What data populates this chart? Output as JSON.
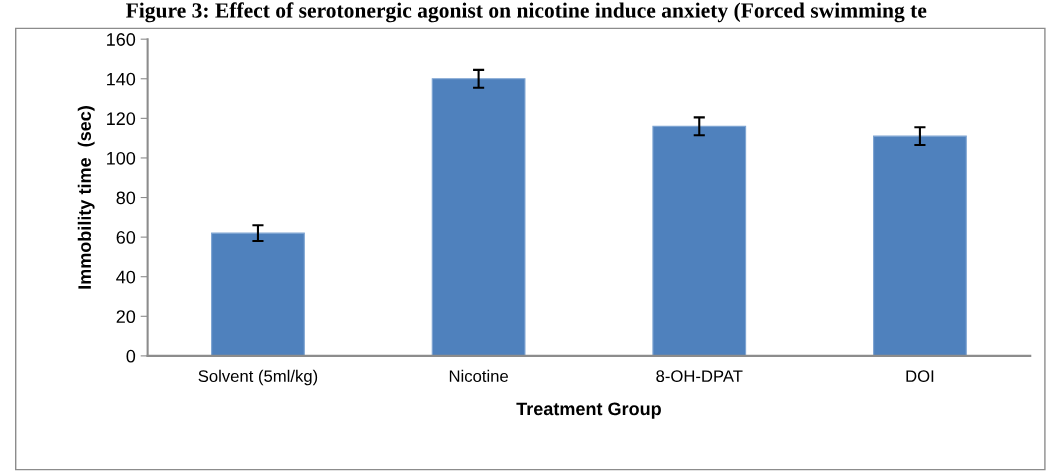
{
  "chart_data": {
    "type": "bar",
    "title": "Figure 3: Effect of serotonergic agonist on nicotine induce anxiety (Forced swimming te",
    "categories": [
      "Solvent (5ml/kg)",
      "Nicotine",
      "8-OH-DPAT",
      "DOI"
    ],
    "values": [
      62,
      140,
      116,
      111
    ],
    "errors": [
      4,
      4.5,
      4.5,
      4.5
    ],
    "color": "#4f81bd",
    "xlabel": "Treatment Group",
    "ylabel": "Immobility time  (sec)",
    "ylim": [
      0,
      160
    ],
    "yticks": [
      0,
      20,
      40,
      60,
      80,
      100,
      120,
      140,
      160
    ],
    "grid": false
  }
}
